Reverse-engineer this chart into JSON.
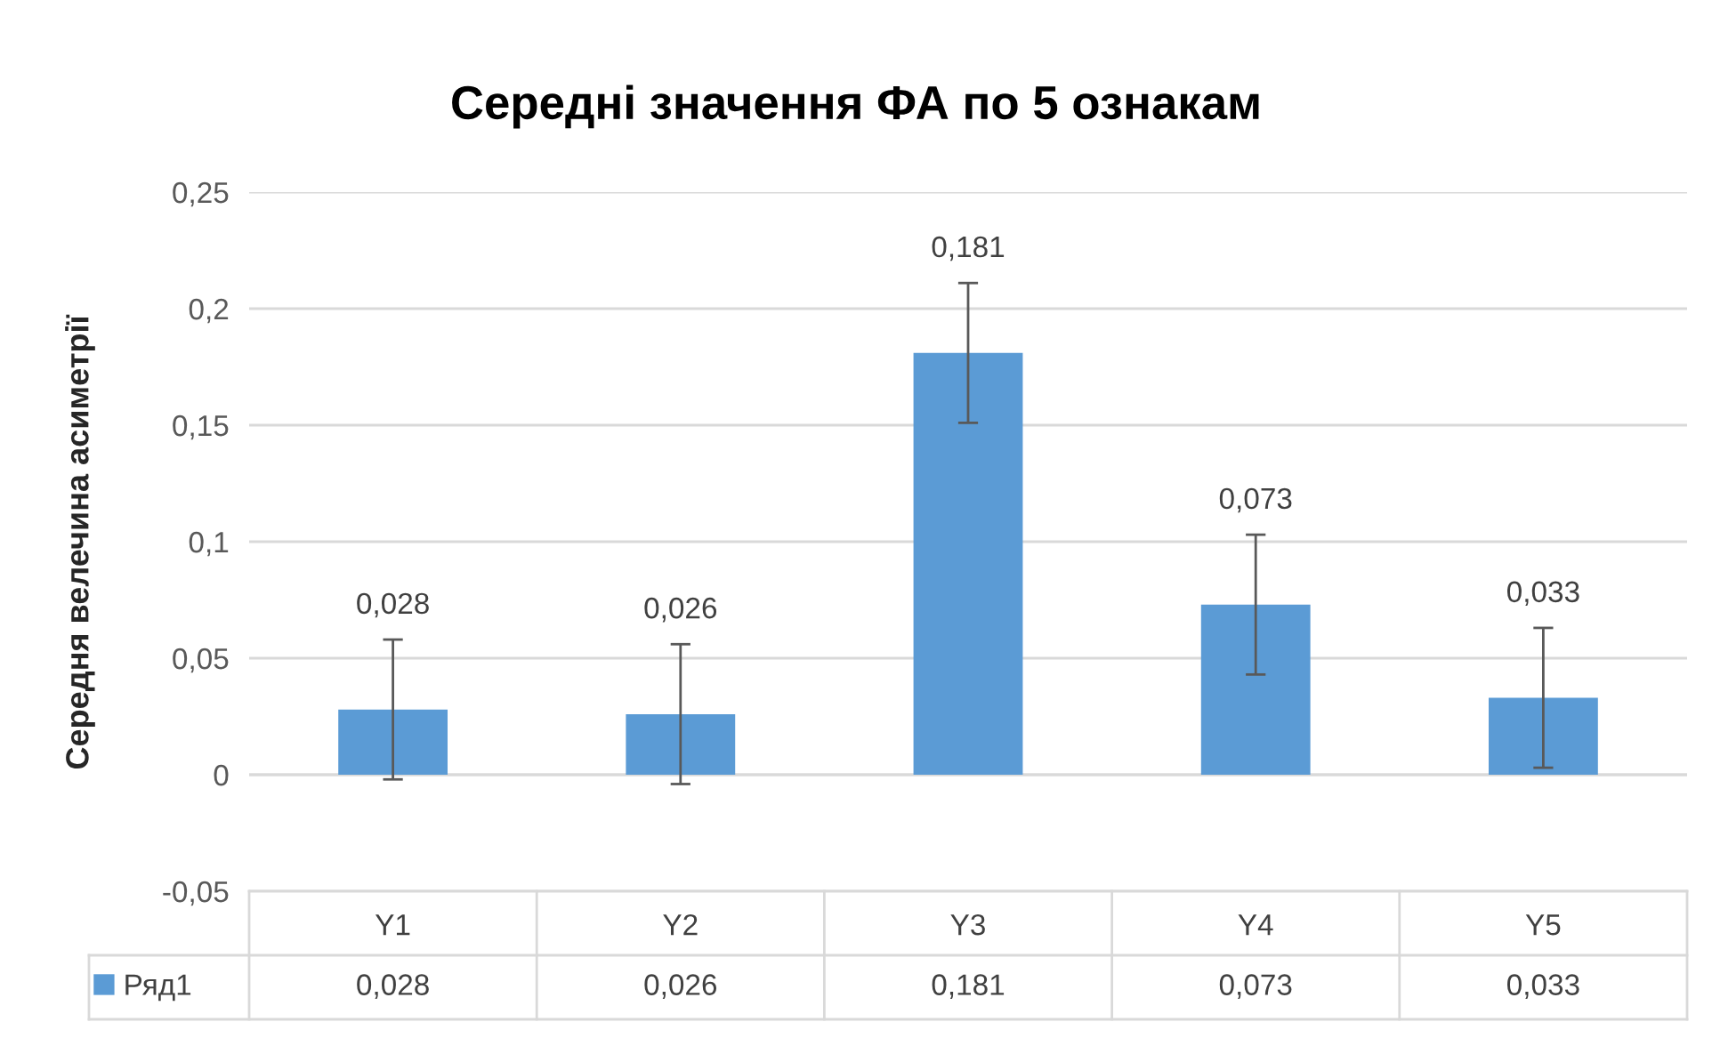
{
  "chart_data": {
    "type": "bar",
    "title": "Середні значення ФА по 5 ознакам",
    "ylabel": "Середня велечина асиметрії",
    "categories": [
      "Y1",
      "Y2",
      "Y3",
      "Y4",
      "Y5"
    ],
    "series": [
      {
        "name": "Ряд1",
        "color": "#5b9bd5",
        "values": [
          0.028,
          0.026,
          0.181,
          0.073,
          0.033
        ],
        "value_labels": [
          "0,028",
          "0,026",
          "0,181",
          "0,073",
          "0,033"
        ],
        "errors": [
          0.03,
          0.03,
          0.03,
          0.03,
          0.03
        ]
      }
    ],
    "ylim": [
      -0.05,
      0.25
    ],
    "yticks": [
      {
        "value": -0.05,
        "label": "-0,05"
      },
      {
        "value": 0,
        "label": "0"
      },
      {
        "value": 0.05,
        "label": "0,05"
      },
      {
        "value": 0.1,
        "label": "0,1"
      },
      {
        "value": 0.15,
        "label": "0,15"
      },
      {
        "value": 0.2,
        "label": "0,2"
      },
      {
        "value": 0.25,
        "label": "0,25"
      }
    ],
    "grid": "y",
    "legend": "bottom"
  }
}
